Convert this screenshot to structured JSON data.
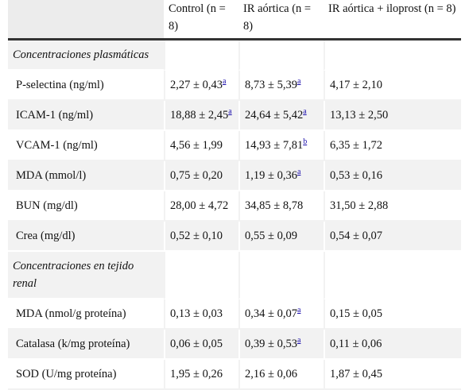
{
  "table": {
    "header": {
      "col0": "",
      "col1": "Control (n = 8)",
      "col2": "IR aórtica (n = 8)",
      "col3": "IR aórtica + iloprost (n = 8)"
    },
    "sections": [
      {
        "title": "Concentraciones plasmáticas",
        "rows": [
          {
            "label": "P-selectina (ng/ml)",
            "c1": "2,27 ± 0,43",
            "c1_sup": "a",
            "c2": "8,73 ± 5,39",
            "c2_sup": "a",
            "c3": "4,17 ± 2,10",
            "c3_sup": ""
          },
          {
            "label": "ICAM-1 (ng/ml)",
            "c1": "18,88 ± 2,45",
            "c1_sup": "a",
            "c2": "24,64 ± 5,42",
            "c2_sup": "a",
            "c3": "13,13 ± 2,50",
            "c3_sup": ""
          },
          {
            "label": "VCAM-1 (ng/ml)",
            "c1": "4,56 ± 1,99",
            "c1_sup": "",
            "c2": "14,93 ± 7,81",
            "c2_sup": "b",
            "c3": "6,35 ± 1,72",
            "c3_sup": ""
          },
          {
            "label": "MDA (mmol/l)",
            "c1": "0,75 ± 0,20",
            "c1_sup": "",
            "c2": "1,19 ± 0,36",
            "c2_sup": "a",
            "c3": "0,53 ± 0,16",
            "c3_sup": ""
          },
          {
            "label": "BUN (mg/dl)",
            "c1": "28,00 ± 4,72",
            "c1_sup": "",
            "c2": "34,85 ± 8,78",
            "c2_sup": "",
            "c3": "31,50 ± 2,88",
            "c3_sup": ""
          },
          {
            "label": "Crea (mg/dl)",
            "c1": "0,52 ± 0,10",
            "c1_sup": "",
            "c2": "0,55 ± 0,09",
            "c2_sup": "",
            "c3": "0,54 ± 0,07",
            "c3_sup": ""
          }
        ]
      },
      {
        "title": "Concentraciones en tejido renal",
        "rows": [
          {
            "label": "MDA (nmol/g proteína)",
            "c1": "0,13 ± 0,03",
            "c1_sup": "",
            "c2": "0,34 ± 0,07",
            "c2_sup": "a",
            "c3": "0,15 ± 0,05",
            "c3_sup": ""
          },
          {
            "label": "Catalasa (k/mg proteína)",
            "c1": "0,06 ± 0,05",
            "c1_sup": "",
            "c2": "0,39 ± 0,53",
            "c2_sup": "a",
            "c3": "0,11 ± 0,06",
            "c3_sup": ""
          },
          {
            "label": "SOD (U/mg proteína)",
            "c1": "1,95 ± 0,26",
            "c1_sup": "",
            "c2": "2,16 ± 0,06",
            "c2_sup": "",
            "c3": "1,87 ± 0,45",
            "c3_sup": ""
          }
        ]
      }
    ]
  }
}
